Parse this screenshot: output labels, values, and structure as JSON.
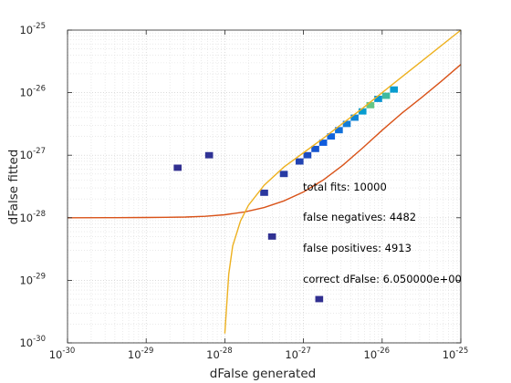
{
  "chart_data": {
    "type": "heatmap",
    "title": "",
    "xlabel": "dFalse generated",
    "ylabel": "dFalse fitted",
    "xscale": "log",
    "yscale": "log",
    "xlim": [
      1e-30,
      1e-25
    ],
    "ylim": [
      1e-30,
      1e-25
    ],
    "x_ticks": [
      {
        "base": "10",
        "exp": "-30"
      },
      {
        "base": "10",
        "exp": "-29"
      },
      {
        "base": "10",
        "exp": "-28"
      },
      {
        "base": "10",
        "exp": "-27"
      },
      {
        "base": "10",
        "exp": "-26"
      },
      {
        "base": "10",
        "exp": "-25"
      }
    ],
    "y_ticks": [
      {
        "base": "10",
        "exp": "-30"
      },
      {
        "base": "10",
        "exp": "-29"
      },
      {
        "base": "10",
        "exp": "-28"
      },
      {
        "base": "10",
        "exp": "-27"
      },
      {
        "base": "10",
        "exp": "-26"
      },
      {
        "base": "10",
        "exp": "-25"
      }
    ],
    "grid": "dotted minor and major",
    "annotations": [
      "total fits: 10000",
      "false negatives: 4482",
      "false positives: 4913",
      "correct dFalse: 6.050000e+00"
    ],
    "density_bins_log10": [
      {
        "x": -25.85,
        "y": -25.95,
        "level": 0.75
      },
      {
        "x": -25.95,
        "y": -26.05,
        "level": 0.85
      },
      {
        "x": -26.05,
        "y": -26.1,
        "level": 0.7
      },
      {
        "x": -26.15,
        "y": -26.2,
        "level": 0.9
      },
      {
        "x": -26.25,
        "y": -26.3,
        "level": 0.75
      },
      {
        "x": -26.35,
        "y": -26.4,
        "level": 0.6
      },
      {
        "x": -26.45,
        "y": -26.5,
        "level": 0.55
      },
      {
        "x": -26.55,
        "y": -26.6,
        "level": 0.45
      },
      {
        "x": -26.65,
        "y": -26.7,
        "level": 0.35
      },
      {
        "x": -26.75,
        "y": -26.8,
        "level": 0.3
      },
      {
        "x": -26.85,
        "y": -26.9,
        "level": 0.25
      },
      {
        "x": -26.95,
        "y": -27.0,
        "level": 0.2
      },
      {
        "x": -27.05,
        "y": -27.1,
        "level": 0.15
      },
      {
        "x": -27.25,
        "y": -27.3,
        "level": 0.1
      },
      {
        "x": -27.5,
        "y": -27.6,
        "level": 0.08
      },
      {
        "x": -28.2,
        "y": -27.0,
        "level": 0.05
      },
      {
        "x": -28.6,
        "y": -27.2,
        "level": 0.03
      },
      {
        "x": -27.4,
        "y": -28.3,
        "level": 0.04
      },
      {
        "x": -26.8,
        "y": -29.3,
        "level": 0.03
      }
    ],
    "curves": [
      {
        "color": "#d95319",
        "points": [
          [
            -30,
            -28.0
          ],
          [
            -29.5,
            -27.999
          ],
          [
            -29,
            -27.996
          ],
          [
            -28.75,
            -27.993
          ],
          [
            -28.5,
            -27.988
          ],
          [
            -28.25,
            -27.976
          ],
          [
            -28.0,
            -27.952
          ],
          [
            -27.75,
            -27.907
          ],
          [
            -27.5,
            -27.837
          ],
          [
            -27.25,
            -27.731
          ],
          [
            -27.0,
            -27.587
          ],
          [
            -26.75,
            -27.397
          ],
          [
            -26.5,
            -27.16
          ],
          [
            -26.25,
            -26.886
          ],
          [
            -26.0,
            -26.6
          ],
          [
            -25.75,
            -26.33
          ],
          [
            -25.5,
            -26.08
          ],
          [
            -25.25,
            -25.82
          ],
          [
            -25.0,
            -25.55
          ]
        ]
      },
      {
        "color": "#edb120",
        "points": [
          [
            -28.0,
            -29.85
          ],
          [
            -27.95,
            -28.9
          ],
          [
            -27.9,
            -28.45
          ],
          [
            -27.8,
            -28.05
          ],
          [
            -27.7,
            -27.8
          ],
          [
            -27.5,
            -27.48
          ],
          [
            -27.25,
            -27.19
          ],
          [
            -27.0,
            -26.96
          ],
          [
            -26.75,
            -26.73
          ],
          [
            -26.5,
            -26.49
          ],
          [
            -26.25,
            -26.25
          ],
          [
            -26.0,
            -26.0
          ],
          [
            -25.75,
            -25.75
          ],
          [
            -25.5,
            -25.5
          ],
          [
            -25.25,
            -25.25
          ],
          [
            -25.0,
            -25.0
          ]
        ]
      }
    ]
  }
}
